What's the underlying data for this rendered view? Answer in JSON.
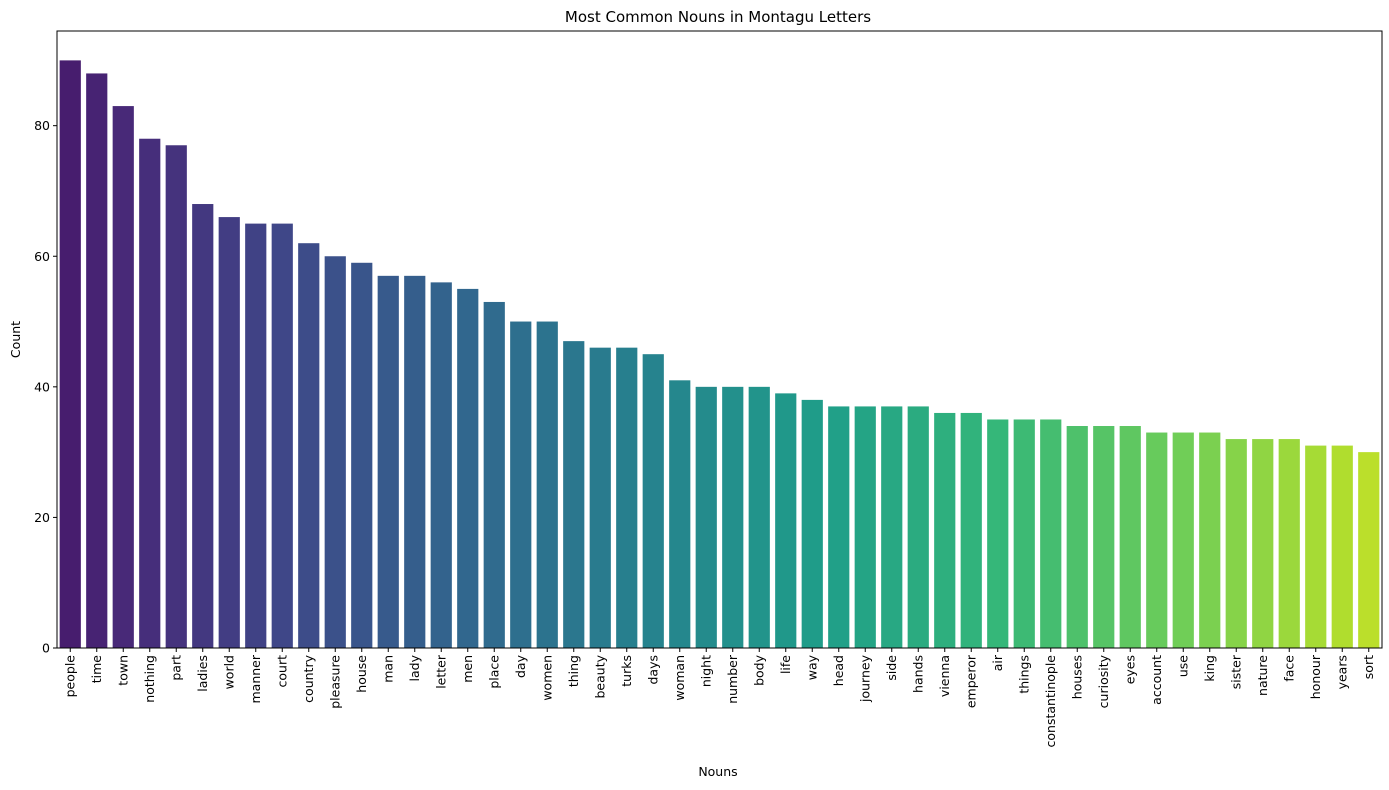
{
  "chart_data": {
    "type": "bar",
    "title": "Most Common Nouns in Montagu Letters",
    "xlabel": "Nouns",
    "ylabel": "Count",
    "ylim": [
      0,
      94.5
    ],
    "yticks": [
      0,
      20,
      40,
      60,
      80
    ],
    "grid": false,
    "palette": "viridis",
    "categories": [
      "people",
      "time",
      "town",
      "nothing",
      "part",
      "ladies",
      "world",
      "manner",
      "court",
      "country",
      "pleasure",
      "house",
      "man",
      "lady",
      "letter",
      "men",
      "place",
      "day",
      "women",
      "thing",
      "beauty",
      "turks",
      "days",
      "woman",
      "night",
      "number",
      "body",
      "life",
      "way",
      "head",
      "journey",
      "side",
      "hands",
      "vienna",
      "emperor",
      "air",
      "things",
      "constantinople",
      "houses",
      "curiosity",
      "eyes",
      "account",
      "use",
      "king",
      "sister",
      "nature",
      "face",
      "honour",
      "years",
      "sort"
    ],
    "values": [
      90,
      88,
      83,
      78,
      77,
      68,
      66,
      65,
      65,
      62,
      60,
      59,
      57,
      57,
      56,
      55,
      53,
      50,
      50,
      47,
      46,
      46,
      45,
      41,
      40,
      40,
      40,
      39,
      38,
      37,
      37,
      37,
      37,
      36,
      36,
      35,
      35,
      35,
      34,
      34,
      34,
      33,
      33,
      33,
      32,
      32,
      32,
      31,
      31,
      30
    ]
  }
}
